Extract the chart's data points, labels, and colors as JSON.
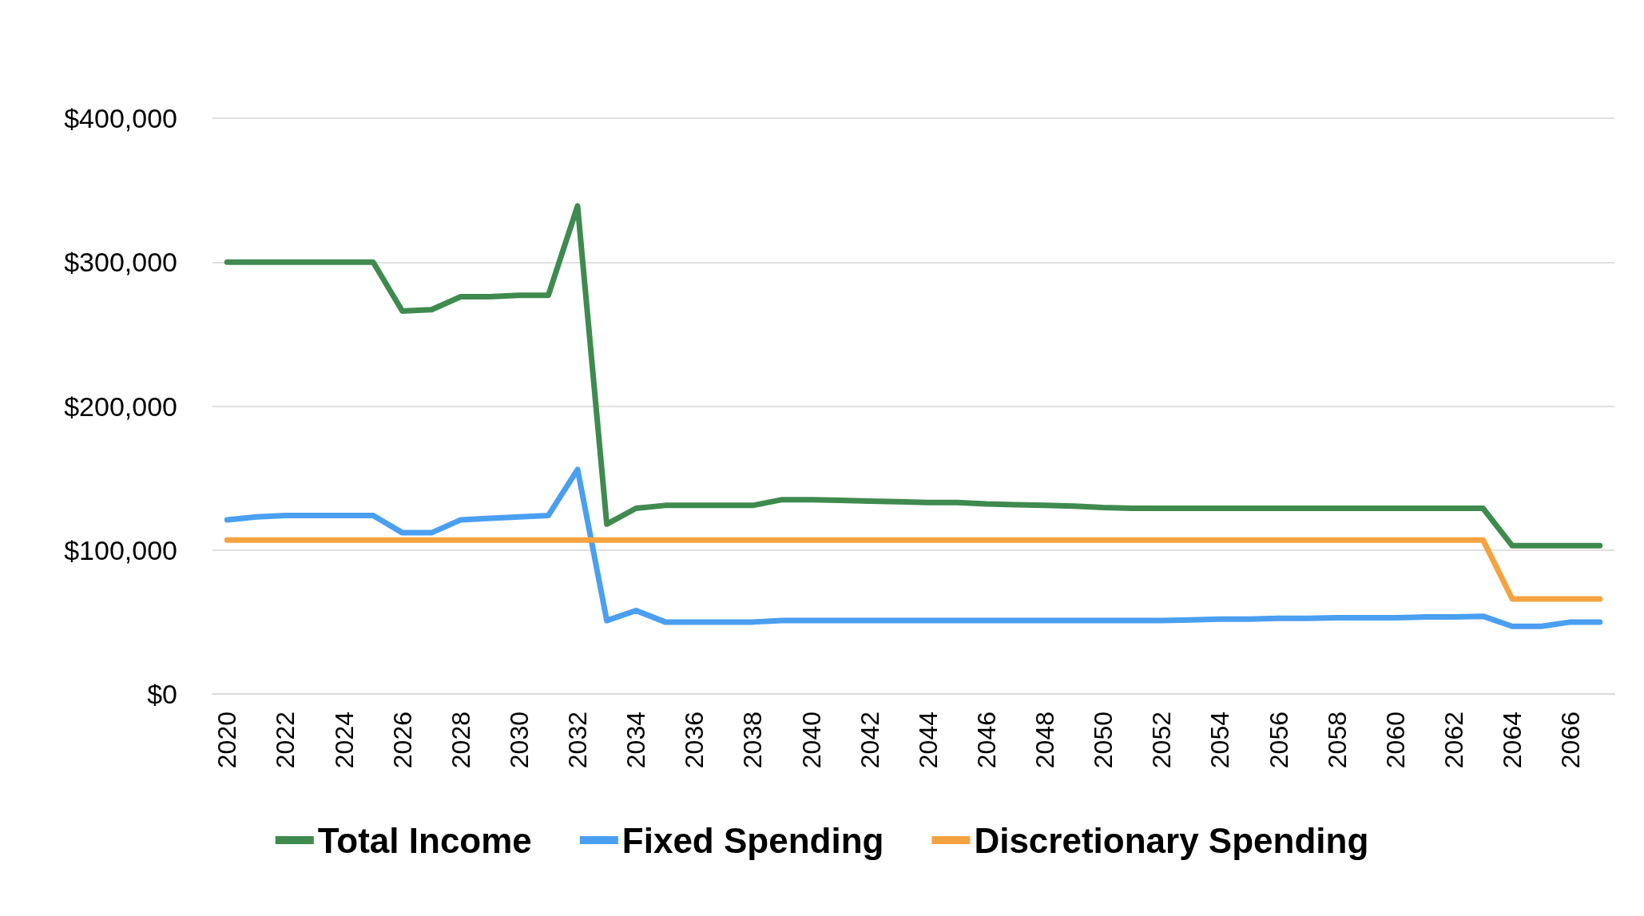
{
  "chart_data": {
    "type": "line",
    "categories": [
      "2020",
      null,
      "2022",
      null,
      "2024",
      null,
      "2026",
      null,
      "2028",
      null,
      "2030",
      null,
      "2032",
      null,
      "2034",
      null,
      "2036",
      null,
      "2038",
      null,
      "2040",
      null,
      "2042",
      null,
      "2044",
      null,
      "2046",
      null,
      "2048",
      null,
      "2050",
      null,
      "2052",
      null,
      "2054",
      null,
      "2056",
      null,
      "2058",
      null,
      "2060",
      null,
      "2062",
      null,
      "2064",
      null,
      "2066",
      null
    ],
    "series": [
      {
        "name": "Total Income",
        "color": "#3f8a4f",
        "values": [
          300000,
          300000,
          300000,
          300000,
          300000,
          300000,
          266000,
          267000,
          276000,
          276000,
          277000,
          277000,
          339000,
          118000,
          129000,
          131000,
          131000,
          131000,
          131000,
          135000,
          135000,
          134500,
          134000,
          133500,
          133000,
          133000,
          132000,
          131500,
          131000,
          130500,
          129500,
          129000,
          129000,
          129000,
          129000,
          129000,
          129000,
          129000,
          129000,
          129000,
          129000,
          129000,
          129000,
          129000,
          103000,
          103000,
          103000,
          103000
        ]
      },
      {
        "name": "Fixed Spending",
        "color": "#4a9ff0",
        "values": [
          121000,
          123000,
          124000,
          124000,
          124000,
          124000,
          112000,
          112000,
          121000,
          122000,
          123000,
          124000,
          156000,
          51000,
          58000,
          50000,
          50000,
          50000,
          50000,
          51000,
          51000,
          51000,
          51000,
          51000,
          51000,
          51000,
          51000,
          51000,
          51000,
          51000,
          51000,
          51000,
          51000,
          51500,
          52000,
          52000,
          52500,
          52500,
          53000,
          53000,
          53000,
          53500,
          53500,
          54000,
          47000,
          47000,
          50000,
          50000
        ]
      },
      {
        "name": "Discretionary Spending",
        "color": "#f4a340",
        "values": [
          107000,
          107000,
          107000,
          107000,
          107000,
          107000,
          107000,
          107000,
          107000,
          107000,
          107000,
          107000,
          107000,
          107000,
          107000,
          107000,
          107000,
          107000,
          107000,
          107000,
          107000,
          107000,
          107000,
          107000,
          107000,
          107000,
          107000,
          107000,
          107000,
          107000,
          107000,
          107000,
          107000,
          107000,
          107000,
          107000,
          107000,
          107000,
          107000,
          107000,
          107000,
          107000,
          107000,
          107000,
          66000,
          66000,
          66000,
          66000
        ]
      }
    ],
    "ylim": [
      0,
      400000
    ],
    "yticks": [
      {
        "value": 0,
        "label": "$0"
      },
      {
        "value": 100000,
        "label": "$100,000"
      },
      {
        "value": 200000,
        "label": "$200,000"
      },
      {
        "value": 300000,
        "label": "$300,000"
      },
      {
        "value": 400000,
        "label": "$400,000"
      }
    ],
    "grid": "y",
    "legend": "bottom",
    "marker": "none",
    "line_style": "solid"
  }
}
